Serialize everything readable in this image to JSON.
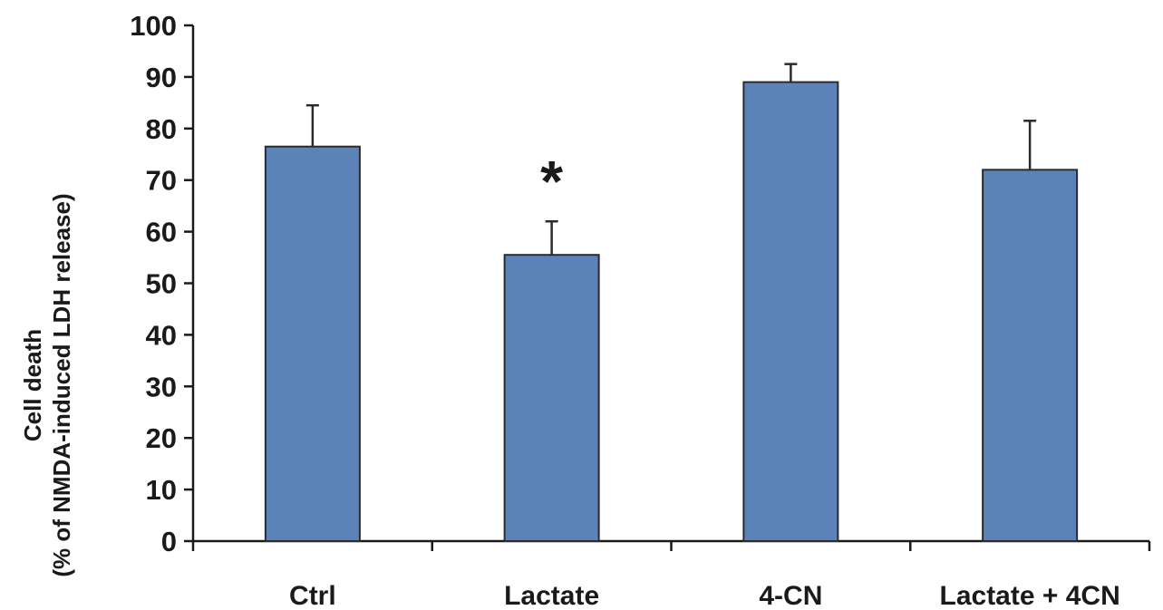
{
  "chart_data": {
    "type": "bar",
    "title": "",
    "xlabel": "",
    "ylabel": {
      "line1": "Cell death",
      "line2": "(% of NMDA-induced LDH release)"
    },
    "ylim": [
      0,
      100
    ],
    "yticks": [
      0,
      10,
      20,
      30,
      40,
      50,
      60,
      70,
      80,
      90,
      100
    ],
    "categories": [
      "Ctrl",
      "Lactate",
      "4-CN",
      "Lactate + 4CN"
    ],
    "values": [
      76.5,
      55.5,
      89,
      72
    ],
    "error_upper": [
      8,
      6.5,
      3.5,
      9.5
    ],
    "annotations": [
      {
        "category": "Lactate",
        "text": "*"
      }
    ],
    "bar_color": "#5b83b9",
    "grid": false,
    "legend": "none"
  }
}
